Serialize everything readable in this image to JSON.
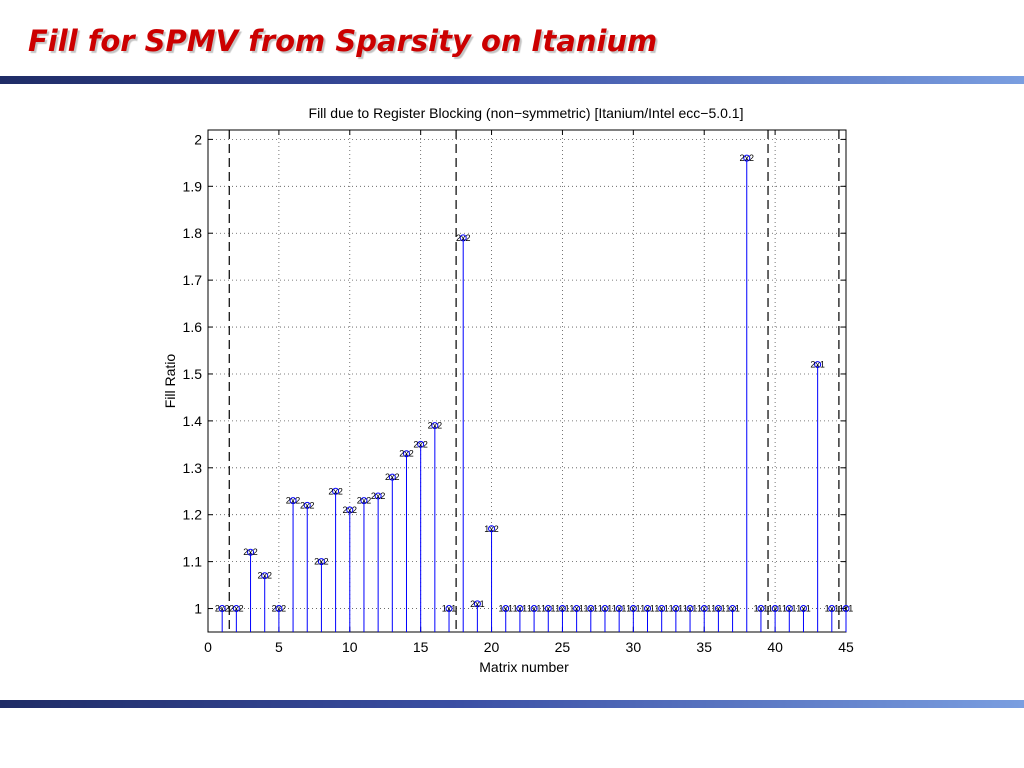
{
  "slide": {
    "title": "Fill for SPMV from Sparsity on Itanium"
  },
  "colors": {
    "title": "#cc0000",
    "stem": "#0000ff",
    "rule": "#3b4fa4"
  },
  "chart_data": {
    "type": "stem",
    "title": "Fill due to Register Blocking (non−symmetric) [Itanium/Intel ecc−5.0.1]",
    "xlabel": "Matrix number",
    "ylabel": "Fill Ratio",
    "xlim": [
      0,
      45
    ],
    "ylim": [
      0.95,
      2.02
    ],
    "xticks": [
      0,
      5,
      10,
      15,
      20,
      25,
      30,
      35,
      40,
      45
    ],
    "yticks": [
      1,
      1.1,
      1.2,
      1.3,
      1.4,
      1.5,
      1.6,
      1.7,
      1.8,
      1.9,
      2
    ],
    "grid": true,
    "vlines": [
      1.5,
      17.5,
      39.5,
      44.5
    ],
    "baseline": 0.95,
    "points": [
      {
        "x": 1,
        "y": 1.0,
        "label": "2x2"
      },
      {
        "x": 2,
        "y": 1.0,
        "label": "2x2"
      },
      {
        "x": 3,
        "y": 1.12,
        "label": "2x2"
      },
      {
        "x": 4,
        "y": 1.07,
        "label": "2x2"
      },
      {
        "x": 5,
        "y": 1.0,
        "label": "2x2"
      },
      {
        "x": 6,
        "y": 1.23,
        "label": "2x2"
      },
      {
        "x": 7,
        "y": 1.22,
        "label": "2x2"
      },
      {
        "x": 8,
        "y": 1.1,
        "label": "2x2"
      },
      {
        "x": 9,
        "y": 1.25,
        "label": "2x2"
      },
      {
        "x": 10,
        "y": 1.21,
        "label": "2x2"
      },
      {
        "x": 11,
        "y": 1.23,
        "label": "2x2"
      },
      {
        "x": 12,
        "y": 1.24,
        "label": "2x2"
      },
      {
        "x": 13,
        "y": 1.28,
        "label": "2x2"
      },
      {
        "x": 14,
        "y": 1.33,
        "label": "2x2"
      },
      {
        "x": 15,
        "y": 1.35,
        "label": "2x2"
      },
      {
        "x": 16,
        "y": 1.39,
        "label": "2x2"
      },
      {
        "x": 17,
        "y": 1.0,
        "label": "1x1"
      },
      {
        "x": 18,
        "y": 1.79,
        "label": "2x2"
      },
      {
        "x": 19,
        "y": 1.01,
        "label": "2x1"
      },
      {
        "x": 20,
        "y": 1.17,
        "label": "1x2"
      },
      {
        "x": 21,
        "y": 1.0,
        "label": "1x1"
      },
      {
        "x": 22,
        "y": 1.0,
        "label": "1x1"
      },
      {
        "x": 23,
        "y": 1.0,
        "label": "1x1"
      },
      {
        "x": 24,
        "y": 1.0,
        "label": "1x1"
      },
      {
        "x": 25,
        "y": 1.0,
        "label": "1x1"
      },
      {
        "x": 26,
        "y": 1.0,
        "label": "1x1"
      },
      {
        "x": 27,
        "y": 1.0,
        "label": "1x1"
      },
      {
        "x": 28,
        "y": 1.0,
        "label": "1x1"
      },
      {
        "x": 29,
        "y": 1.0,
        "label": "1x1"
      },
      {
        "x": 30,
        "y": 1.0,
        "label": "1x1"
      },
      {
        "x": 31,
        "y": 1.0,
        "label": "1x1"
      },
      {
        "x": 32,
        "y": 1.0,
        "label": "1x1"
      },
      {
        "x": 33,
        "y": 1.0,
        "label": "1x1"
      },
      {
        "x": 34,
        "y": 1.0,
        "label": "1x1"
      },
      {
        "x": 35,
        "y": 1.0,
        "label": "1x1"
      },
      {
        "x": 36,
        "y": 1.0,
        "label": "1x1"
      },
      {
        "x": 37,
        "y": 1.0,
        "label": "1x1"
      },
      {
        "x": 38,
        "y": 1.96,
        "label": "2x2"
      },
      {
        "x": 39,
        "y": 1.0,
        "label": "1x1"
      },
      {
        "x": 40,
        "y": 1.0,
        "label": "1x1"
      },
      {
        "x": 41,
        "y": 1.0,
        "label": "1x1"
      },
      {
        "x": 42,
        "y": 1.0,
        "label": "1x1"
      },
      {
        "x": 43,
        "y": 1.52,
        "label": "2x1"
      },
      {
        "x": 44,
        "y": 1.0,
        "label": "1x1"
      },
      {
        "x": 45,
        "y": 1.0,
        "label": "1x1"
      }
    ]
  }
}
